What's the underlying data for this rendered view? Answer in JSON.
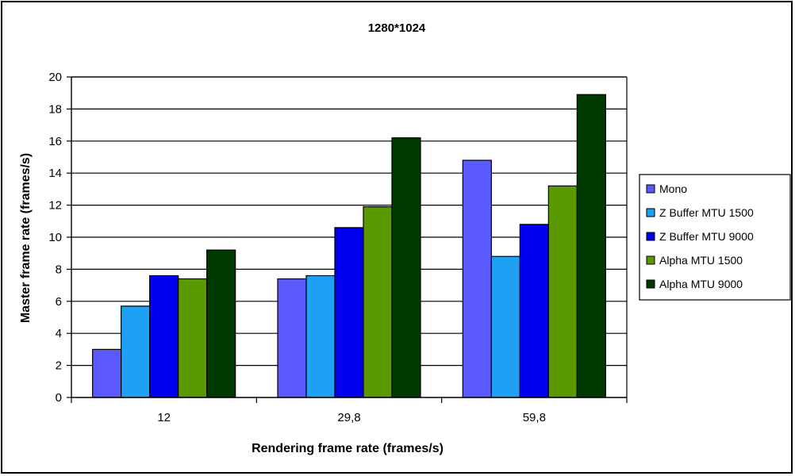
{
  "chart_data": {
    "type": "bar",
    "title": "1280*1024",
    "xlabel": "Rendering frame rate  (frames/s)",
    "ylabel": "Master frame rate (frames/s)",
    "categories": [
      "12",
      "29,8",
      "59,8"
    ],
    "ylim": [
      0,
      20
    ],
    "ytick_step": 2,
    "grid": true,
    "legend_position": "right",
    "series": [
      {
        "name": "Mono",
        "color": "#5a5aff",
        "values": [
          3.0,
          7.4,
          14.8
        ]
      },
      {
        "name": "Z Buffer MTU 1500",
        "color": "#1ea0f5",
        "values": [
          5.7,
          7.6,
          8.8
        ]
      },
      {
        "name": "Z Buffer MTU 9000",
        "color": "#0000f0",
        "values": [
          7.6,
          10.6,
          10.8
        ]
      },
      {
        "name": "Alpha MTU 1500",
        "color": "#5a9a00",
        "values": [
          7.4,
          11.9,
          13.2
        ]
      },
      {
        "name": "Alpha MTU 9000",
        "color": "#003a00",
        "values": [
          9.2,
          16.2,
          18.9
        ]
      }
    ]
  }
}
